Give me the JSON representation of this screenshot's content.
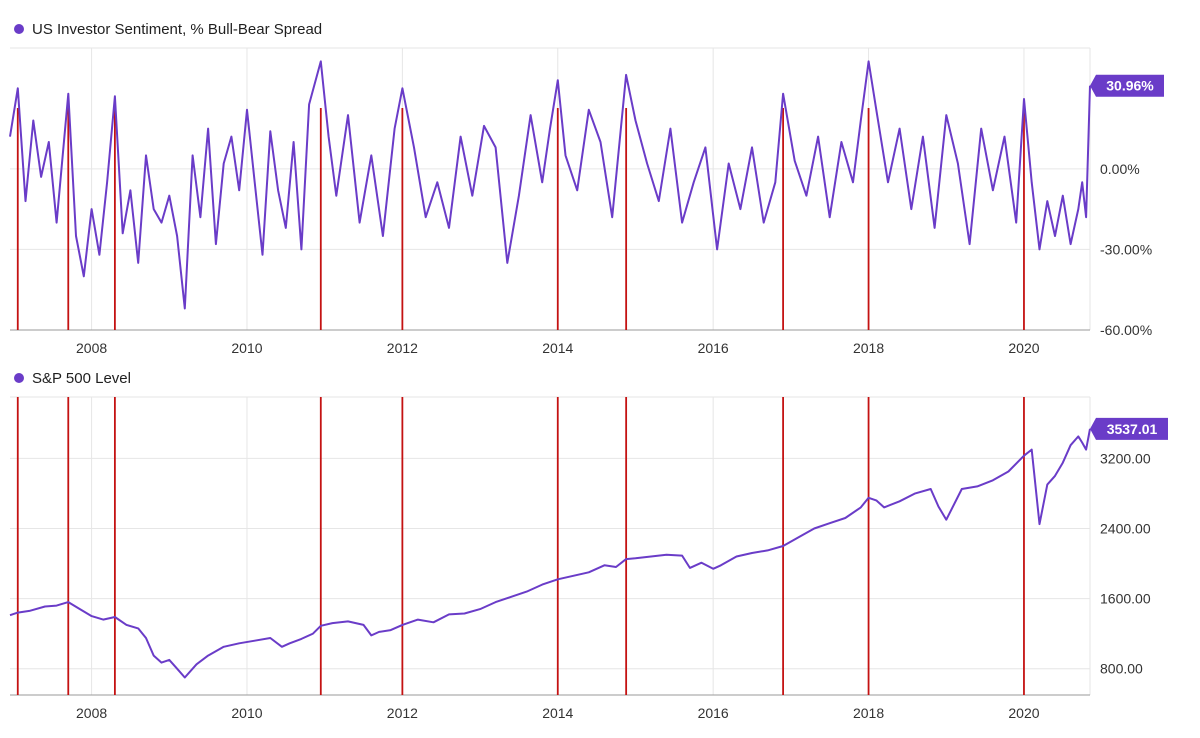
{
  "colors": {
    "series": "#6a3cc8",
    "marker": "#c41212",
    "grid": "#e6e6e6",
    "axis": "#9a9a9a"
  },
  "chart_data": [
    {
      "type": "line",
      "legend": "US Investor Sentiment, % Bull-Bear Spread",
      "last_value_label": "30.96%",
      "last_value": 30.96,
      "xlim": [
        2006.95,
        2020.85
      ],
      "ylim": [
        -60,
        45
      ],
      "yticks": [
        0,
        -30,
        -60
      ],
      "ytick_labels": [
        "0.00%",
        "-30.00%",
        "-60.00%"
      ],
      "xticks": [
        2008,
        2010,
        2012,
        2014,
        2016,
        2018,
        2020
      ],
      "xtick_labels": [
        "2008",
        "2010",
        "2012",
        "2014",
        "2016",
        "2018",
        "2020"
      ],
      "grid": true,
      "marker_dates": [
        2007.05,
        2007.7,
        2008.3,
        2010.95,
        2012.0,
        2014.0,
        2014.88,
        2016.9,
        2018.0,
        2020.0
      ],
      "series": [
        {
          "x": [
            2006.95,
            2007.05,
            2007.15,
            2007.25,
            2007.35,
            2007.45,
            2007.55,
            2007.7,
            2007.8,
            2007.9,
            2008.0,
            2008.1,
            2008.2,
            2008.3,
            2008.4,
            2008.5,
            2008.6,
            2008.7,
            2008.8,
            2008.9,
            2009.0,
            2009.1,
            2009.2,
            2009.3,
            2009.4,
            2009.5,
            2009.6,
            2009.7,
            2009.8,
            2009.9,
            2010.0,
            2010.1,
            2010.2,
            2010.3,
            2010.4,
            2010.5,
            2010.6,
            2010.7,
            2010.8,
            2010.95,
            2011.05,
            2011.15,
            2011.3,
            2011.45,
            2011.6,
            2011.75,
            2011.9,
            2012.0,
            2012.15,
            2012.3,
            2012.45,
            2012.6,
            2012.75,
            2012.9,
            2013.05,
            2013.2,
            2013.35,
            2013.5,
            2013.65,
            2013.8,
            2013.9,
            2014.0,
            2014.1,
            2014.25,
            2014.4,
            2014.55,
            2014.7,
            2014.88,
            2015.0,
            2015.15,
            2015.3,
            2015.45,
            2015.6,
            2015.75,
            2015.9,
            2016.05,
            2016.2,
            2016.35,
            2016.5,
            2016.65,
            2016.8,
            2016.9,
            2017.05,
            2017.2,
            2017.35,
            2017.5,
            2017.65,
            2017.8,
            2017.9,
            2018.0,
            2018.1,
            2018.25,
            2018.4,
            2018.55,
            2018.7,
            2018.85,
            2019.0,
            2019.15,
            2019.3,
            2019.45,
            2019.6,
            2019.75,
            2019.9,
            2020.0,
            2020.1,
            2020.2,
            2020.3,
            2020.4,
            2020.5,
            2020.6,
            2020.7,
            2020.75,
            2020.8,
            2020.85
          ],
          "y": [
            12,
            30,
            -12,
            18,
            -3,
            10,
            -20,
            28,
            -25,
            -40,
            -15,
            -32,
            -5,
            27,
            -24,
            -8,
            -35,
            5,
            -15,
            -20,
            -10,
            -25,
            -52,
            5,
            -18,
            15,
            -28,
            2,
            12,
            -8,
            22,
            -5,
            -32,
            14,
            -8,
            -22,
            10,
            -30,
            24,
            40,
            12,
            -10,
            20,
            -20,
            5,
            -25,
            15,
            30,
            8,
            -18,
            -5,
            -22,
            12,
            -10,
            16,
            8,
            -35,
            -10,
            20,
            -5,
            15,
            33,
            5,
            -8,
            22,
            10,
            -18,
            35,
            18,
            2,
            -12,
            15,
            -20,
            -5,
            8,
            -30,
            2,
            -15,
            8,
            -20,
            -5,
            28,
            3,
            -10,
            12,
            -18,
            10,
            -5,
            18,
            40,
            22,
            -5,
            15,
            -15,
            12,
            -22,
            20,
            2,
            -28,
            15,
            -8,
            12,
            -20,
            26,
            -5,
            -30,
            -12,
            -25,
            -10,
            -28,
            -15,
            -5,
            -18,
            30.96
          ]
        }
      ]
    },
    {
      "type": "line",
      "legend": "S&P 500 Level",
      "last_value_label": "3537.01",
      "last_value": 3537.01,
      "xlim": [
        2006.95,
        2020.85
      ],
      "ylim": [
        500,
        3900
      ],
      "yticks": [
        3200,
        2400,
        1600,
        800
      ],
      "ytick_labels": [
        "3200.00",
        "2400.00",
        "1600.00",
        "800.00"
      ],
      "xticks": [
        2008,
        2010,
        2012,
        2014,
        2016,
        2018,
        2020
      ],
      "xtick_labels": [
        "2008",
        "2010",
        "2012",
        "2014",
        "2016",
        "2018",
        "2020"
      ],
      "grid": true,
      "marker_dates": [
        2007.05,
        2007.7,
        2008.3,
        2010.95,
        2012.0,
        2014.0,
        2014.88,
        2016.9,
        2018.0,
        2020.0
      ],
      "series": [
        {
          "x": [
            2006.95,
            2007.05,
            2007.2,
            2007.4,
            2007.55,
            2007.7,
            2007.85,
            2008.0,
            2008.15,
            2008.3,
            2008.45,
            2008.6,
            2008.7,
            2008.8,
            2008.9,
            2009.0,
            2009.1,
            2009.2,
            2009.35,
            2009.5,
            2009.7,
            2009.9,
            2010.1,
            2010.3,
            2010.45,
            2010.55,
            2010.7,
            2010.85,
            2010.95,
            2011.1,
            2011.3,
            2011.5,
            2011.6,
            2011.7,
            2011.85,
            2012.0,
            2012.2,
            2012.4,
            2012.6,
            2012.8,
            2013.0,
            2013.2,
            2013.4,
            2013.6,
            2013.8,
            2014.0,
            2014.2,
            2014.4,
            2014.6,
            2014.75,
            2014.88,
            2015.0,
            2015.2,
            2015.4,
            2015.6,
            2015.7,
            2015.85,
            2016.0,
            2016.1,
            2016.3,
            2016.5,
            2016.7,
            2016.9,
            2017.1,
            2017.3,
            2017.5,
            2017.7,
            2017.9,
            2018.0,
            2018.1,
            2018.2,
            2018.4,
            2018.6,
            2018.8,
            2018.9,
            2019.0,
            2019.2,
            2019.4,
            2019.6,
            2019.8,
            2020.0,
            2020.1,
            2020.2,
            2020.3,
            2020.4,
            2020.5,
            2020.6,
            2020.7,
            2020.75,
            2020.8,
            2020.85
          ],
          "y": [
            1410,
            1440,
            1460,
            1510,
            1520,
            1560,
            1480,
            1400,
            1360,
            1390,
            1300,
            1260,
            1150,
            950,
            870,
            900,
            800,
            700,
            850,
            950,
            1050,
            1090,
            1120,
            1150,
            1050,
            1090,
            1140,
            1200,
            1290,
            1320,
            1340,
            1300,
            1180,
            1220,
            1240,
            1300,
            1360,
            1330,
            1420,
            1430,
            1480,
            1560,
            1620,
            1680,
            1760,
            1820,
            1860,
            1900,
            1980,
            1960,
            2050,
            2060,
            2080,
            2100,
            2090,
            1950,
            2010,
            1940,
            1980,
            2080,
            2120,
            2150,
            2200,
            2300,
            2400,
            2460,
            2520,
            2640,
            2750,
            2720,
            2640,
            2710,
            2800,
            2850,
            2650,
            2500,
            2850,
            2880,
            2950,
            3050,
            3230,
            3300,
            2450,
            2900,
            3000,
            3150,
            3350,
            3450,
            3380,
            3300,
            3537
          ]
        }
      ]
    }
  ]
}
